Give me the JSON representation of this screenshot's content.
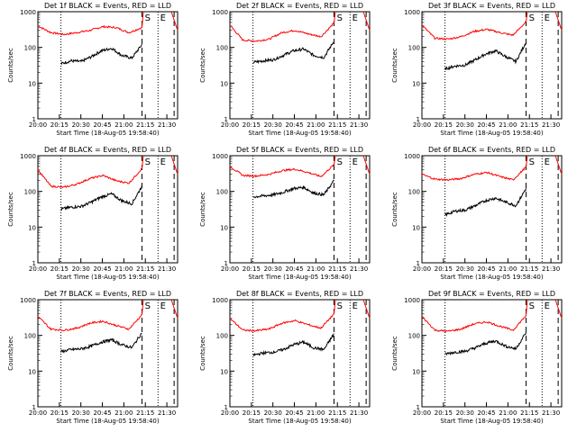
{
  "chart_data": {
    "type": "line",
    "xlabel": "Start Time (18-Aug-05 19:58:40)",
    "ylabel": "Counts/sec",
    "ylim": [
      1,
      1000
    ],
    "yscale": "log",
    "x_tick_labels": [
      "20:00",
      "20:15",
      "20:30",
      "20:45",
      "21:00",
      "21:15",
      "21:30"
    ],
    "y_tick_labels": [
      "1",
      "10",
      "100",
      "1000"
    ],
    "series_colors": {
      "events": "#000000",
      "lld": "#ff0000"
    },
    "markers": {
      "start": "S",
      "end": "E"
    },
    "panels": [
      {
        "title": "Det 1f BLACK = Events, RED = LLD",
        "lld": [
          400,
          260,
          230,
          260,
          300,
          380,
          360,
          260,
          360
        ],
        "events": [
          35,
          42,
          40,
          55,
          80,
          95,
          60,
          50,
          120
        ]
      },
      {
        "title": "Det 2f BLACK = Events, RED = LLD",
        "lld": [
          420,
          160,
          150,
          170,
          260,
          300,
          240,
          200,
          480
        ],
        "events": [
          38,
          42,
          45,
          60,
          80,
          90,
          60,
          52,
          150
        ]
      },
      {
        "title": "Det 3f BLACK = Events, RED = LLD",
        "lld": [
          420,
          180,
          170,
          200,
          280,
          320,
          260,
          220,
          520
        ],
        "events": [
          25,
          30,
          32,
          45,
          65,
          80,
          55,
          40,
          140
        ]
      },
      {
        "title": "Det 4f BLACK = Events, RED = LLD",
        "lld": [
          400,
          140,
          130,
          160,
          230,
          280,
          200,
          170,
          440
        ],
        "events": [
          32,
          36,
          38,
          50,
          70,
          85,
          55,
          45,
          140
        ]
      },
      {
        "title": "Det 5f BLACK = Events, RED = LLD",
        "lld": [
          500,
          280,
          270,
          300,
          380,
          420,
          340,
          260,
          560
        ],
        "events": [
          70,
          75,
          80,
          95,
          120,
          130,
          90,
          80,
          200
        ]
      },
      {
        "title": "Det 6f BLACK = Events, RED = LLD",
        "lld": [
          300,
          220,
          210,
          230,
          300,
          340,
          260,
          210,
          480
        ],
        "events": [
          22,
          28,
          30,
          40,
          55,
          65,
          50,
          40,
          120
        ]
      },
      {
        "title": "Det 7f BLACK = Events, RED = LLD",
        "lld": [
          340,
          150,
          140,
          160,
          220,
          250,
          190,
          150,
          380
        ],
        "events": [
          35,
          40,
          42,
          50,
          65,
          75,
          55,
          45,
          120
        ]
      },
      {
        "title": "Det 8f BLACK = Events, RED = LLD",
        "lld": [
          300,
          140,
          135,
          150,
          220,
          260,
          200,
          160,
          400
        ],
        "events": [
          28,
          32,
          34,
          40,
          55,
          65,
          45,
          40,
          110
        ]
      },
      {
        "title": "Det 9f BLACK = Events, RED = LLD",
        "lld": [
          340,
          140,
          130,
          150,
          210,
          240,
          180,
          140,
          360
        ],
        "events": [
          30,
          34,
          36,
          45,
          60,
          70,
          50,
          42,
          120
        ]
      }
    ]
  }
}
